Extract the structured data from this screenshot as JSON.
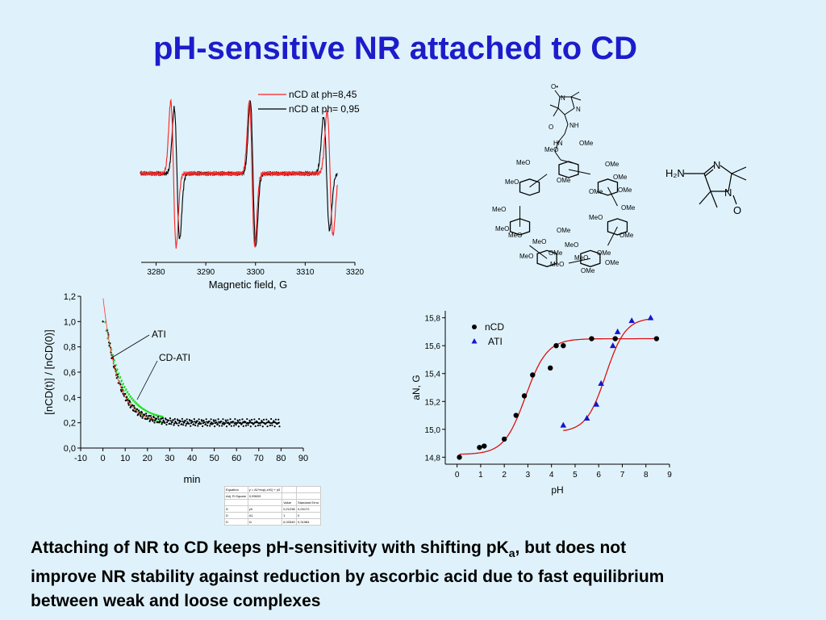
{
  "title": "pH-sensitive NR attached to CD",
  "caption": {
    "line1_a": "Attaching of NR to CD keeps pH-sensitivity with shifting pK",
    "line1_sub": "a",
    "line1_b": ",  but does not",
    "line2": "improve NR stability against reduction by ascorbic acid due to fast equilibrium",
    "line3": "between weak and loose complexes"
  },
  "chart_data": [
    {
      "type": "line",
      "id": "epr",
      "xlabel": "Magnetic field, G",
      "ylabel": "",
      "xlim": [
        3277,
        3320
      ],
      "xticks": [
        3280,
        3290,
        3300,
        3310,
        3320
      ],
      "legend_position": "top-right",
      "series": [
        {
          "name": "nCD at ph=8,45",
          "color": "#ff2020",
          "lines": [
            {
              "center": 3283.5,
              "amp": 1.0,
              "width": 0.55
            },
            {
              "center": 3299.3,
              "amp": 1.0,
              "width": 0.55
            },
            {
              "center": 3315.0,
              "amp": 0.85,
              "width": 0.6
            }
          ]
        },
        {
          "name": "nCD at ph= 0,95",
          "color": "#000000",
          "lines": [
            {
              "center": 3284.2,
              "amp": 0.9,
              "width": 0.55
            },
            {
              "center": 3299.5,
              "amp": 1.0,
              "width": 0.55
            },
            {
              "center": 3314.3,
              "amp": 0.78,
              "width": 0.6
            }
          ]
        }
      ]
    },
    {
      "type": "scatter",
      "id": "decay",
      "xlabel": "min",
      "ylabel": "[nCD(t)] / [nCD(0)]",
      "xlim": [
        -10,
        90
      ],
      "ylim": [
        0,
        1.2
      ],
      "xticks": [
        -10,
        0,
        10,
        20,
        30,
        40,
        50,
        60,
        70,
        80,
        90
      ],
      "yticks": [
        "0,0",
        "0,2",
        "0,4",
        "0,6",
        "0,8",
        "1,0",
        "1,2"
      ],
      "annotations": [
        "ATI",
        "CD-ATI"
      ],
      "fit": {
        "y0": 0.2,
        "A1": 1.0,
        "t1": 6.33
      },
      "series": [
        {
          "name": "ATI",
          "color": "#000000"
        },
        {
          "name": "CD-ATI",
          "color": "#22dd22"
        }
      ]
    },
    {
      "type": "scatter",
      "id": "ph",
      "xlabel": "pH",
      "ylabel": "aN, G",
      "xlim": [
        -0.5,
        9
      ],
      "ylim": [
        14.75,
        15.85
      ],
      "xticks": [
        0,
        1,
        2,
        3,
        4,
        5,
        6,
        7,
        8,
        9
      ],
      "yticks": [
        "14,8",
        "15,0",
        "15,2",
        "15,4",
        "15,6",
        "15,8"
      ],
      "legend_position": "top-left",
      "series": [
        {
          "name": "nCD",
          "marker": "circle",
          "color": "#000000",
          "x": [
            0.1,
            0.95,
            1.15,
            2.0,
            2.5,
            2.85,
            3.2,
            3.95,
            4.2,
            4.5,
            5.7,
            6.7,
            8.45
          ],
          "y": [
            14.8,
            14.87,
            14.88,
            14.93,
            15.1,
            15.24,
            15.39,
            15.44,
            15.6,
            15.6,
            15.65,
            15.65,
            15.65
          ]
        },
        {
          "name": "ATI",
          "marker": "triangle",
          "color": "#1515cc",
          "x": [
            4.5,
            5.5,
            5.9,
            6.1,
            6.6,
            6.8,
            7.4,
            8.2
          ],
          "y": [
            15.03,
            15.08,
            15.18,
            15.33,
            15.6,
            15.7,
            15.78,
            15.8
          ]
        }
      ]
    }
  ],
  "structure": {
    "small": {
      "h2n": "H₂N",
      "n1": "N",
      "n2": "N",
      "o": "O"
    },
    "cd": {
      "nitroxide_o": "O•",
      "n_a": "N",
      "n_b": "N",
      "nh": "NH",
      "o": "O",
      "hn": "HN",
      "labels": [
        "OMe",
        "MeO",
        "OMe",
        "MeO",
        "OMe",
        "MeO",
        "OMe",
        "OMe",
        "MeO",
        "OMe",
        "MeO",
        "OMe",
        "MeO",
        "OMe",
        "MeO",
        "OMe",
        "MeO",
        "OMe",
        "OMe",
        "MeO",
        "MeO",
        "OMe",
        "OMe",
        "MeO",
        "MeO"
      ]
    }
  },
  "fit_table": {
    "rows": [
      [
        "Equation",
        "y = A1*exp(-x/t1) + y0",
        "",
        ""
      ],
      [
        "Adj. R-Square",
        "0,99603",
        "",
        ""
      ],
      [
        "",
        "",
        "Value",
        "Standard Error"
      ],
      [
        "D",
        "y0",
        "0,21238",
        "0,00172"
      ],
      [
        "D",
        "A1",
        "1",
        "0"
      ],
      [
        "D",
        "t1",
        "6,33349",
        "0,31984"
      ]
    ]
  }
}
